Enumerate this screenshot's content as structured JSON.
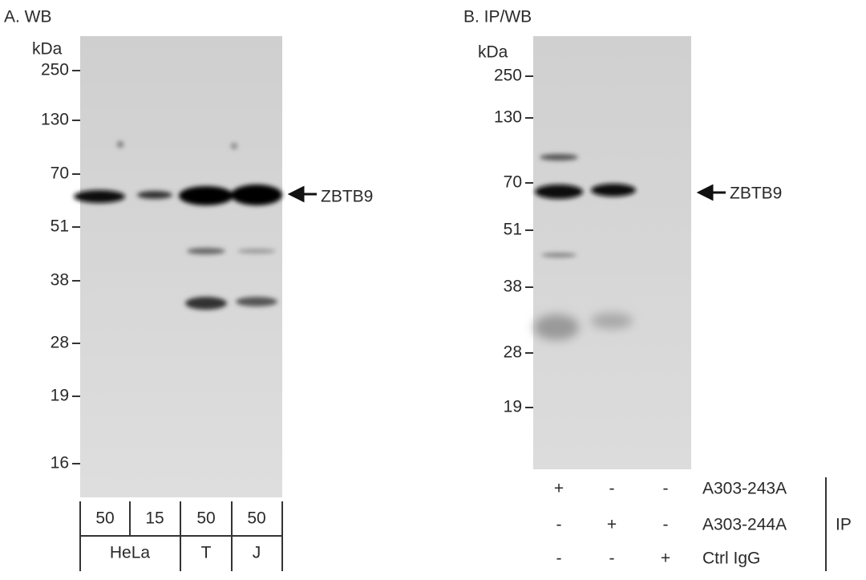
{
  "panel_a": {
    "title": "A. WB",
    "unit": "kDa",
    "markers": [
      "250",
      "130",
      "70",
      "51",
      "38",
      "28",
      "19",
      "16"
    ],
    "target": "ZBTB9",
    "amounts": [
      "50",
      "15",
      "50",
      "50"
    ],
    "cell_lines": [
      "HeLa",
      "T",
      "J"
    ]
  },
  "panel_b": {
    "title": "B. IP/WB",
    "unit": "kDa",
    "markers": [
      "250",
      "130",
      "70",
      "51",
      "38",
      "28",
      "19"
    ],
    "target": "ZBTB9",
    "ip_rows": [
      {
        "label": "A303-243A",
        "lanes": [
          "+",
          "-",
          "-"
        ]
      },
      {
        "label": "A303-244A",
        "lanes": [
          "-",
          "+",
          "-"
        ]
      },
      {
        "label": "Ctrl IgG",
        "lanes": [
          "-",
          "-",
          "+"
        ]
      }
    ],
    "ip_label": "IP"
  }
}
